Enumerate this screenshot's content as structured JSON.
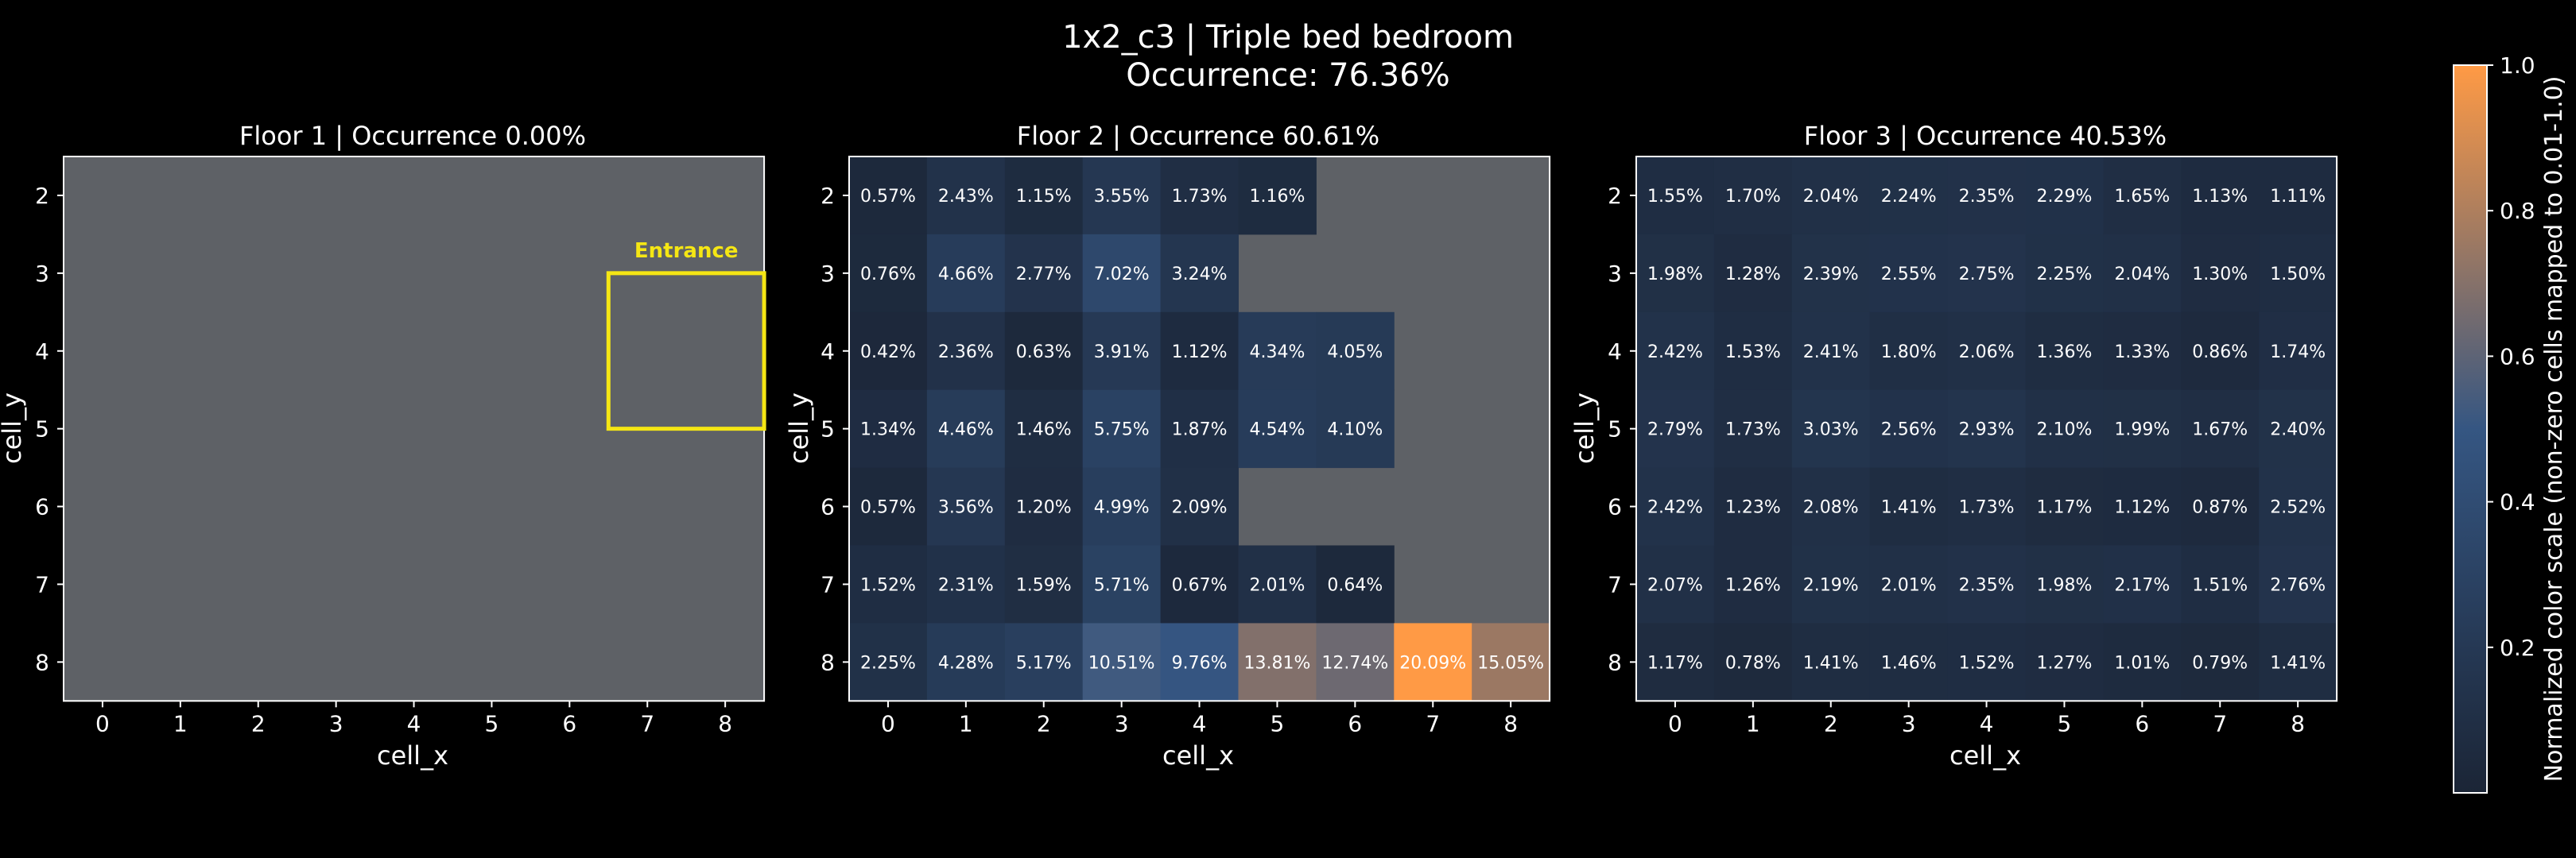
{
  "figure": {
    "title_line1": "1x2_c3 | Triple bed bedroom",
    "title_line2": "Occurrence: 76.36%"
  },
  "colorbar": {
    "label": "Normalized color scale (non-zero cells mapped to 0.01-1.0)",
    "ticks": [
      "0.2",
      "0.4",
      "0.6",
      "0.8",
      "1.0"
    ],
    "tick_values": [
      0.2,
      0.4,
      0.6,
      0.8,
      1.0
    ],
    "colors": {
      "low": "#1b2536",
      "mid": "#355682",
      "high": "#ff9a45"
    }
  },
  "colors": {
    "empty_cell": "#5e6166",
    "entrance": "#f5e614",
    "background": "#000000"
  },
  "chart_data": [
    {
      "type": "heatmap",
      "title": "Floor 1 | Occurrence 0.00%",
      "xlabel": "cell_x",
      "ylabel": "cell_y",
      "x": [
        0,
        1,
        2,
        3,
        4,
        5,
        6,
        7,
        8
      ],
      "y": [
        2,
        3,
        4,
        5,
        6,
        7,
        8
      ],
      "values": [
        [
          null,
          null,
          null,
          null,
          null,
          null,
          null,
          null,
          null
        ],
        [
          null,
          null,
          null,
          null,
          null,
          null,
          null,
          null,
          null
        ],
        [
          null,
          null,
          null,
          null,
          null,
          null,
          null,
          null,
          null
        ],
        [
          null,
          null,
          null,
          null,
          null,
          null,
          null,
          null,
          null
        ],
        [
          null,
          null,
          null,
          null,
          null,
          null,
          null,
          null,
          null
        ],
        [
          null,
          null,
          null,
          null,
          null,
          null,
          null,
          null,
          null
        ],
        [
          null,
          null,
          null,
          null,
          null,
          null,
          null,
          null,
          null
        ]
      ],
      "annotation": {
        "label": "Entrance",
        "x": [
          7,
          8
        ],
        "y": [
          4,
          5
        ]
      }
    },
    {
      "type": "heatmap",
      "title": "Floor 2 | Occurrence 60.61%",
      "xlabel": "cell_x",
      "ylabel": "cell_y",
      "x": [
        0,
        1,
        2,
        3,
        4,
        5,
        6,
        7,
        8
      ],
      "y": [
        2,
        3,
        4,
        5,
        6,
        7,
        8
      ],
      "values": [
        [
          0.57,
          2.43,
          1.15,
          3.55,
          1.73,
          1.16,
          null,
          null,
          null
        ],
        [
          0.76,
          4.66,
          2.77,
          7.02,
          3.24,
          null,
          null,
          null,
          null
        ],
        [
          0.42,
          2.36,
          0.63,
          3.91,
          1.12,
          4.34,
          4.05,
          null,
          null
        ],
        [
          1.34,
          4.46,
          1.46,
          5.75,
          1.87,
          4.54,
          4.1,
          null,
          null
        ],
        [
          0.57,
          3.56,
          1.2,
          4.99,
          2.09,
          null,
          null,
          null,
          null
        ],
        [
          1.52,
          2.31,
          1.59,
          5.71,
          0.67,
          2.01,
          0.64,
          null,
          null
        ],
        [
          2.25,
          4.28,
          5.17,
          10.51,
          9.76,
          13.81,
          12.74,
          20.09,
          15.05
        ]
      ]
    },
    {
      "type": "heatmap",
      "title": "Floor 3 | Occurrence 40.53%",
      "xlabel": "cell_x",
      "ylabel": "cell_y",
      "x": [
        0,
        1,
        2,
        3,
        4,
        5,
        6,
        7,
        8
      ],
      "y": [
        2,
        3,
        4,
        5,
        6,
        7,
        8
      ],
      "values": [
        [
          1.55,
          1.7,
          2.04,
          2.24,
          2.35,
          2.29,
          1.65,
          1.13,
          1.11
        ],
        [
          1.98,
          1.28,
          2.39,
          2.55,
          2.75,
          2.25,
          2.04,
          1.3,
          1.5
        ],
        [
          2.42,
          1.53,
          2.41,
          1.8,
          2.06,
          1.36,
          1.33,
          0.86,
          1.74
        ],
        [
          2.79,
          1.73,
          3.03,
          2.56,
          2.93,
          2.1,
          1.99,
          1.67,
          2.4
        ],
        [
          2.42,
          1.23,
          2.08,
          1.41,
          1.73,
          1.17,
          1.12,
          0.87,
          2.52
        ],
        [
          2.07,
          1.26,
          2.19,
          2.01,
          2.35,
          1.98,
          2.17,
          1.51,
          2.76
        ],
        [
          1.17,
          0.78,
          1.41,
          1.46,
          1.52,
          1.27,
          1.01,
          0.79,
          1.41
        ]
      ]
    }
  ]
}
